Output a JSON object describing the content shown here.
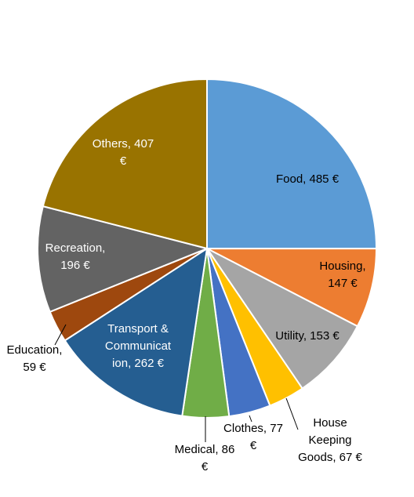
{
  "chart_data": {
    "type": "pie",
    "title": "",
    "start_angle_deg": 0,
    "direction": "clockwise",
    "slices": [
      {
        "label": "Food",
        "value": 485,
        "display": [
          "Food, 485 €"
        ],
        "color": "#5B9BD5",
        "text_color": "#000000"
      },
      {
        "label": "Housing",
        "value": 147,
        "display": [
          "Housing,",
          "147 €"
        ],
        "color": "#ED7D31",
        "text_color": "#000000"
      },
      {
        "label": "Utility",
        "value": 153,
        "display": [
          "Utility, 153 €"
        ],
        "color": "#A5A5A5",
        "text_color": "#000000"
      },
      {
        "label": "House Keeping Goods",
        "value": 67,
        "display": [
          "House",
          "Keeping",
          "Goods, 67 €"
        ],
        "color": "#FFC000",
        "text_color": "#000000"
      },
      {
        "label": "Clothes",
        "value": 77,
        "display": [
          "Clothes, 77",
          "€"
        ],
        "color": "#4472C4",
        "text_color": "#000000"
      },
      {
        "label": "Medical",
        "value": 86,
        "display": [
          "Medical, 86",
          "€"
        ],
        "color": "#70AD47",
        "text_color": "#000000"
      },
      {
        "label": "Transport & Communication",
        "value": 262,
        "display": [
          "Transport &",
          "Communicat",
          "ion, 262 €"
        ],
        "color": "#255E91",
        "text_color": "#ffffff"
      },
      {
        "label": "Education",
        "value": 59,
        "display": [
          "Education,",
          "59 €"
        ],
        "color": "#9E480E",
        "text_color": "#000000"
      },
      {
        "label": "Recreation",
        "value": 196,
        "display": [
          "Recreation,",
          "196 €"
        ],
        "color": "#636363",
        "text_color": "#ffffff"
      },
      {
        "label": "Others",
        "value": 407,
        "display": [
          "Others, 407",
          "€"
        ],
        "color": "#997300",
        "text_color": "#ffffff"
      }
    ]
  }
}
